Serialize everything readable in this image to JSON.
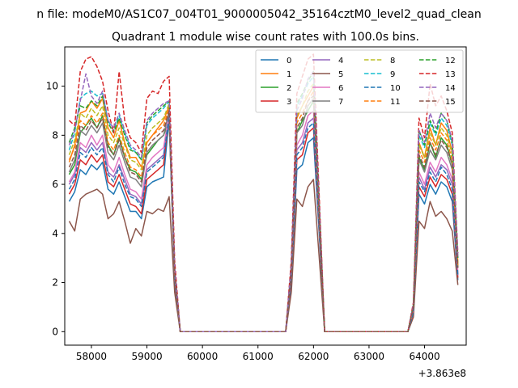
{
  "chart_data": {
    "type": "line",
    "suptitle": "n file: modeM0/AS1C07_004T01_9000005042_35164cztM0_level2_quad_clean",
    "title": "Quadrant 1 module wise count rates with 100.0s bins.",
    "xlabel": "",
    "ylabel": "",
    "x_offset_label": "+3.863e8",
    "xlim": [
      57520,
      64750
    ],
    "ylim": [
      -0.55,
      11.6
    ],
    "x_ticks": [
      58000,
      59000,
      60000,
      61000,
      62000,
      63000,
      64000
    ],
    "x_tick_labels": [
      "58000",
      "59000",
      "60000",
      "61000",
      "62000",
      "63000",
      "64000"
    ],
    "y_ticks": [
      0,
      2,
      4,
      6,
      8,
      10
    ],
    "y_tick_labels": [
      "0",
      "2",
      "4",
      "6",
      "8",
      "10"
    ],
    "grid": false,
    "legend_position": "upper-right",
    "x": [
      57600,
      57700,
      57800,
      57900,
      58000,
      58100,
      58200,
      58300,
      58400,
      58500,
      58600,
      58700,
      58800,
      58900,
      59000,
      59100,
      59200,
      59300,
      59400,
      59500,
      59600,
      61500,
      61600,
      61700,
      61800,
      61900,
      62000,
      62100,
      62200,
      63700,
      63800,
      63900,
      64000,
      64100,
      64200,
      64300,
      64400,
      64500,
      64600
    ],
    "series": [
      {
        "name": "0",
        "style": "solid",
        "color": "#1f77b4",
        "values": [
          5.3,
          5.7,
          6.6,
          6.4,
          6.8,
          6.6,
          6.9,
          5.8,
          5.6,
          6.1,
          5.5,
          4.9,
          4.9,
          4.6,
          5.9,
          6.1,
          6.2,
          6.3,
          8.7,
          2.0,
          0,
          0,
          2.0,
          6.6,
          6.8,
          7.7,
          7.9,
          4.1,
          0,
          0,
          0.8,
          5.6,
          5.2,
          6.0,
          5.6,
          6.1,
          5.9,
          5.3,
          2.1
        ]
      },
      {
        "name": "1",
        "style": "solid",
        "color": "#ff7f0e",
        "values": [
          6.9,
          7.6,
          8.9,
          9.0,
          9.4,
          9.1,
          9.5,
          8.3,
          7.9,
          8.6,
          7.7,
          7.1,
          7.1,
          6.7,
          7.7,
          8.0,
          8.3,
          8.6,
          9.2,
          2.4,
          0,
          0,
          2.5,
          8.7,
          9.2,
          9.6,
          10.0,
          5.0,
          0,
          0,
          1.0,
          7.7,
          7.1,
          8.3,
          7.6,
          8.5,
          8.2,
          7.3,
          2.8
        ]
      },
      {
        "name": "2",
        "style": "solid",
        "color": "#2ca02c",
        "values": [
          6.4,
          6.8,
          8.1,
          8.4,
          8.7,
          8.3,
          8.8,
          7.6,
          7.2,
          7.9,
          7.1,
          6.6,
          6.5,
          6.2,
          7.2,
          7.5,
          7.8,
          8.0,
          8.6,
          2.2,
          0,
          0,
          2.3,
          8.1,
          8.6,
          9.0,
          9.4,
          4.7,
          0,
          0,
          0.9,
          7.1,
          6.6,
          7.7,
          7.1,
          7.9,
          7.6,
          6.8,
          2.6
        ]
      },
      {
        "name": "3",
        "style": "solid",
        "color": "#d62728",
        "values": [
          5.6,
          6.0,
          7.0,
          6.8,
          7.2,
          6.9,
          7.2,
          6.1,
          5.9,
          6.4,
          5.8,
          5.2,
          5.1,
          4.8,
          6.2,
          6.4,
          6.6,
          6.8,
          8.9,
          2.1,
          0,
          0,
          2.1,
          7.0,
          7.2,
          8.1,
          8.3,
          4.3,
          0,
          0,
          0.8,
          5.9,
          5.5,
          6.3,
          5.9,
          6.4,
          6.2,
          5.6,
          2.2
        ]
      },
      {
        "name": "4",
        "style": "solid",
        "color": "#9467bd",
        "values": [
          6.0,
          6.4,
          7.5,
          7.3,
          7.7,
          7.4,
          7.7,
          6.5,
          6.3,
          6.8,
          6.2,
          5.6,
          5.5,
          5.2,
          6.6,
          6.8,
          7.0,
          7.2,
          8.8,
          2.2,
          0,
          0,
          2.2,
          7.4,
          7.7,
          8.5,
          8.7,
          4.5,
          0,
          0,
          0.9,
          6.3,
          5.8,
          6.7,
          6.3,
          6.8,
          6.6,
          6.0,
          2.3
        ]
      },
      {
        "name": "5",
        "style": "solid",
        "color": "#8c564b",
        "values": [
          4.5,
          4.1,
          5.4,
          5.6,
          5.7,
          5.8,
          5.6,
          4.6,
          4.8,
          5.3,
          4.5,
          3.6,
          4.2,
          3.9,
          4.9,
          4.8,
          5.0,
          4.9,
          5.5,
          1.6,
          0,
          0,
          1.6,
          5.4,
          5.1,
          5.9,
          6.2,
          3.1,
          0,
          0,
          0.6,
          4.5,
          4.2,
          5.3,
          4.7,
          4.9,
          4.6,
          4.1,
          1.9
        ]
      },
      {
        "name": "6",
        "style": "solid",
        "color": "#e377c2",
        "values": [
          6.1,
          6.5,
          7.7,
          7.5,
          8.0,
          7.6,
          8.0,
          6.8,
          6.5,
          7.1,
          6.4,
          5.8,
          5.7,
          5.4,
          6.8,
          7.1,
          7.3,
          7.5,
          8.9,
          2.3,
          0,
          0,
          2.3,
          7.6,
          8.0,
          8.8,
          9.0,
          4.6,
          0,
          0,
          0.9,
          6.5,
          6.0,
          6.9,
          6.5,
          7.1,
          6.8,
          6.2,
          2.4
        ]
      },
      {
        "name": "7",
        "style": "solid",
        "color": "#7f7f7f",
        "values": [
          6.5,
          7.0,
          8.2,
          8.0,
          8.4,
          8.1,
          8.5,
          7.3,
          7.0,
          7.6,
          6.9,
          6.3,
          6.2,
          5.9,
          7.3,
          7.6,
          7.8,
          8.0,
          9.0,
          2.4,
          0,
          0,
          2.4,
          8.1,
          8.4,
          9.2,
          9.5,
          4.8,
          0,
          0,
          1.0,
          7.0,
          6.5,
          7.4,
          7.0,
          7.6,
          7.3,
          6.6,
          2.6
        ]
      },
      {
        "name": "8",
        "style": "dashed",
        "color": "#bcbd22",
        "values": [
          7.2,
          7.8,
          8.9,
          8.7,
          9.1,
          8.8,
          9.2,
          8.0,
          7.7,
          8.3,
          7.6,
          7.0,
          6.9,
          6.6,
          8.0,
          8.3,
          8.5,
          8.7,
          9.3,
          2.5,
          0,
          0,
          2.6,
          8.8,
          9.2,
          9.8,
          10.1,
          5.1,
          0,
          0,
          1.0,
          7.6,
          7.1,
          8.1,
          7.6,
          8.3,
          8.0,
          7.2,
          2.8
        ]
      },
      {
        "name": "9",
        "style": "dashed",
        "color": "#17becf",
        "values": [
          7.4,
          8.1,
          9.5,
          9.7,
          9.8,
          9.6,
          9.7,
          8.6,
          8.2,
          8.8,
          8.1,
          7.5,
          7.3,
          7.0,
          8.4,
          8.7,
          8.9,
          9.1,
          9.4,
          2.6,
          0,
          0,
          2.7,
          9.2,
          9.6,
          10.1,
          10.4,
          5.3,
          0,
          0,
          1.1,
          8.0,
          7.5,
          8.5,
          8.0,
          8.7,
          8.4,
          7.6,
          3.0
        ]
      },
      {
        "name": "10",
        "style": "dashed",
        "color": "#1f77b4",
        "values": [
          5.8,
          6.2,
          7.3,
          7.1,
          7.5,
          7.2,
          7.5,
          6.4,
          6.1,
          6.7,
          6.0,
          5.5,
          5.4,
          5.1,
          6.5,
          6.7,
          6.9,
          7.1,
          8.8,
          2.2,
          0,
          0,
          2.2,
          7.2,
          7.5,
          8.3,
          8.5,
          4.4,
          0,
          0,
          0.8,
          6.1,
          5.7,
          6.5,
          6.1,
          6.7,
          6.4,
          5.8,
          2.3
        ]
      },
      {
        "name": "11",
        "style": "dashed",
        "color": "#ff7f0e",
        "values": [
          7.0,
          7.5,
          8.6,
          8.4,
          8.8,
          8.5,
          8.9,
          7.7,
          7.4,
          8.0,
          7.3,
          6.7,
          6.6,
          6.3,
          7.7,
          8.0,
          8.2,
          8.4,
          9.1,
          2.4,
          0,
          0,
          2.5,
          8.5,
          8.9,
          9.4,
          9.8,
          4.9,
          0,
          0,
          1.0,
          7.4,
          6.9,
          7.9,
          7.4,
          8.1,
          7.8,
          7.0,
          2.7
        ]
      },
      {
        "name": "12",
        "style": "dashed",
        "color": "#2ca02c",
        "values": [
          7.7,
          8.3,
          9.2,
          9.1,
          9.4,
          9.2,
          9.6,
          8.5,
          8.1,
          8.7,
          8.0,
          7.4,
          7.3,
          7.0,
          8.5,
          8.8,
          9.0,
          9.2,
          9.4,
          2.6,
          0,
          0,
          2.7,
          9.3,
          9.7,
          10.2,
          10.6,
          5.4,
          0,
          0,
          1.1,
          8.2,
          7.6,
          8.6,
          8.1,
          8.9,
          8.6,
          7.7,
          3.0
        ]
      },
      {
        "name": "13",
        "style": "dashed",
        "color": "#d62728",
        "values": [
          8.6,
          8.4,
          10.6,
          11.1,
          11.2,
          10.8,
          10.2,
          9.0,
          8.1,
          10.6,
          8.6,
          7.9,
          7.7,
          7.3,
          9.5,
          9.8,
          9.7,
          10.2,
          10.4,
          2.9,
          0,
          0,
          2.9,
          9.7,
          10.4,
          11.1,
          11.3,
          5.7,
          0,
          0,
          1.2,
          8.7,
          7.9,
          10.1,
          9.2,
          9.6,
          9.0,
          8.1,
          3.2
        ]
      },
      {
        "name": "14",
        "style": "dashed",
        "color": "#9467bd",
        "values": [
          7.6,
          8.2,
          9.4,
          10.5,
          9.6,
          9.3,
          9.8,
          8.6,
          8.3,
          8.9,
          8.2,
          7.6,
          7.4,
          7.1,
          8.6,
          8.9,
          9.1,
          9.3,
          9.4,
          2.6,
          0,
          0,
          2.7,
          9.0,
          9.5,
          10.3,
          10.6,
          5.3,
          0,
          0,
          1.1,
          8.2,
          7.7,
          8.9,
          8.3,
          8.9,
          8.6,
          7.8,
          3.0
        ]
      },
      {
        "name": "15",
        "style": "dashed",
        "color": "#8c564b",
        "values": [
          6.7,
          7.2,
          8.4,
          8.2,
          8.6,
          8.3,
          8.7,
          7.5,
          7.2,
          7.8,
          7.1,
          6.5,
          6.4,
          6.1,
          7.5,
          7.8,
          8.0,
          8.2,
          9.0,
          2.4,
          0,
          0,
          2.4,
          8.3,
          8.7,
          9.4,
          9.6,
          4.8,
          0,
          0,
          1.0,
          7.2,
          6.7,
          7.7,
          7.2,
          7.8,
          7.5,
          6.8,
          2.6
        ]
      }
    ]
  }
}
